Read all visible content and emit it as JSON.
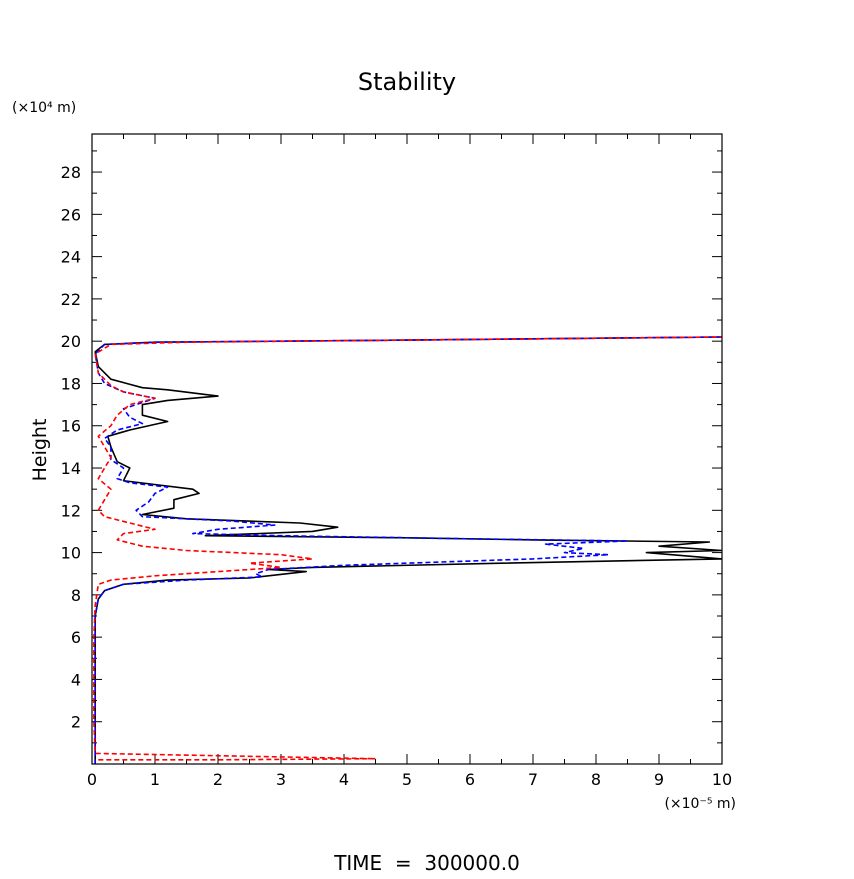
{
  "chart_data": {
    "type": "line",
    "title": "Stability",
    "xlabel": "",
    "ylabel": "Height",
    "x_unit_label": "(×10⁻⁵ m)",
    "y_unit_label": "(×10⁴ m)",
    "footer": "TIME  =  300000.0",
    "xlim": [
      0,
      10
    ],
    "ylim": [
      0,
      29.8
    ],
    "x_ticks": [
      0,
      1,
      2,
      3,
      4,
      5,
      6,
      7,
      8,
      9,
      10
    ],
    "y_ticks": [
      2,
      4,
      6,
      8,
      10,
      12,
      14,
      16,
      18,
      20,
      22,
      24,
      26,
      28
    ],
    "grid": false,
    "legend": "none",
    "series": [
      {
        "color": "#000000",
        "style": "solid",
        "points": [
          [
            0.05,
            0
          ],
          [
            0.05,
            4
          ],
          [
            0.05,
            7
          ],
          [
            0.1,
            7.8
          ],
          [
            0.2,
            8.2
          ],
          [
            0.5,
            8.5
          ],
          [
            1.2,
            8.7
          ],
          [
            2.5,
            8.8
          ],
          [
            3.4,
            9.1
          ],
          [
            2.8,
            9.2
          ],
          [
            3.5,
            9.3
          ],
          [
            6.5,
            9.5
          ],
          [
            10.0,
            9.7
          ],
          [
            8.8,
            10.0
          ],
          [
            10.0,
            10.1
          ],
          [
            9.0,
            10.3
          ],
          [
            9.8,
            10.5
          ],
          [
            7.0,
            10.6
          ],
          [
            5.0,
            10.7
          ],
          [
            1.8,
            10.8
          ],
          [
            3.5,
            11.0
          ],
          [
            3.9,
            11.2
          ],
          [
            3.3,
            11.4
          ],
          [
            1.5,
            11.6
          ],
          [
            0.8,
            11.8
          ],
          [
            1.3,
            12.1
          ],
          [
            1.3,
            12.5
          ],
          [
            1.7,
            12.8
          ],
          [
            1.6,
            13.0
          ],
          [
            0.5,
            13.4
          ],
          [
            0.6,
            14.0
          ],
          [
            0.4,
            14.3
          ],
          [
            0.3,
            15.0
          ],
          [
            0.25,
            15.5
          ],
          [
            0.6,
            15.8
          ],
          [
            1.2,
            16.2
          ],
          [
            0.8,
            16.5
          ],
          [
            0.8,
            17.0
          ],
          [
            1.2,
            17.2
          ],
          [
            2.0,
            17.4
          ],
          [
            1.2,
            17.7
          ],
          [
            0.8,
            17.8
          ],
          [
            0.3,
            18.2
          ],
          [
            0.1,
            18.8
          ],
          [
            0.05,
            19.5
          ],
          [
            0.2,
            19.85
          ],
          [
            1.0,
            19.95
          ],
          [
            5.0,
            20.05
          ],
          [
            10.0,
            20.2
          ]
        ]
      },
      {
        "color": "#0000ff",
        "style": "dashed",
        "points": [
          [
            0.05,
            0
          ],
          [
            0.05,
            4
          ],
          [
            0.05,
            7
          ],
          [
            0.1,
            7.8
          ],
          [
            0.2,
            8.2
          ],
          [
            0.5,
            8.5
          ],
          [
            1.5,
            8.7
          ],
          [
            2.7,
            8.85
          ],
          [
            2.6,
            9.0
          ],
          [
            2.8,
            9.2
          ],
          [
            4.0,
            9.4
          ],
          [
            7.0,
            9.7
          ],
          [
            8.2,
            9.9
          ],
          [
            7.5,
            10.0
          ],
          [
            7.8,
            10.2
          ],
          [
            7.2,
            10.4
          ],
          [
            8.5,
            10.55
          ],
          [
            6.0,
            10.65
          ],
          [
            3.0,
            10.8
          ],
          [
            1.6,
            10.9
          ],
          [
            2.0,
            11.1
          ],
          [
            2.9,
            11.3
          ],
          [
            2.2,
            11.5
          ],
          [
            0.8,
            11.7
          ],
          [
            0.7,
            12.0
          ],
          [
            0.9,
            12.4
          ],
          [
            1.0,
            12.8
          ],
          [
            1.2,
            13.1
          ],
          [
            0.6,
            13.3
          ],
          [
            0.4,
            13.5
          ],
          [
            0.5,
            14.0
          ],
          [
            0.3,
            14.4
          ],
          [
            0.3,
            15.0
          ],
          [
            0.2,
            15.4
          ],
          [
            0.4,
            15.8
          ],
          [
            0.8,
            16.1
          ],
          [
            0.6,
            16.4
          ],
          [
            0.5,
            16.8
          ],
          [
            0.8,
            17.1
          ],
          [
            1.0,
            17.3
          ],
          [
            0.5,
            17.6
          ],
          [
            0.2,
            18.0
          ],
          [
            0.1,
            18.5
          ],
          [
            0.05,
            19.4
          ],
          [
            0.2,
            19.85
          ],
          [
            1.0,
            19.95
          ],
          [
            5.0,
            20.05
          ],
          [
            10.0,
            20.2
          ]
        ]
      },
      {
        "color": "#ff0000",
        "style": "dashed",
        "points": [
          [
            0.1,
            0.2
          ],
          [
            0.8,
            0.2
          ],
          [
            2.0,
            0.2
          ],
          [
            4.5,
            0.25
          ],
          [
            0.05,
            0.5
          ],
          [
            0.03,
            2
          ],
          [
            0.03,
            4
          ],
          [
            0.03,
            6
          ],
          [
            0.05,
            7.5
          ],
          [
            0.1,
            8.5
          ],
          [
            0.3,
            8.7
          ],
          [
            1.0,
            8.9
          ],
          [
            2.0,
            9.1
          ],
          [
            3.0,
            9.3
          ],
          [
            2.5,
            9.5
          ],
          [
            3.5,
            9.7
          ],
          [
            3.0,
            9.9
          ],
          [
            1.5,
            10.1
          ],
          [
            0.8,
            10.3
          ],
          [
            0.4,
            10.6
          ],
          [
            0.5,
            10.9
          ],
          [
            1.0,
            11.1
          ],
          [
            0.6,
            11.4
          ],
          [
            0.2,
            11.7
          ],
          [
            0.1,
            12.0
          ],
          [
            0.2,
            12.5
          ],
          [
            0.3,
            13.0
          ],
          [
            0.1,
            13.5
          ],
          [
            0.2,
            14.0
          ],
          [
            0.3,
            14.5
          ],
          [
            0.2,
            15.0
          ],
          [
            0.1,
            15.5
          ],
          [
            0.3,
            16.0
          ],
          [
            0.4,
            16.5
          ],
          [
            0.6,
            17.0
          ],
          [
            1.0,
            17.3
          ],
          [
            0.5,
            17.6
          ],
          [
            0.3,
            17.9
          ],
          [
            0.1,
            18.5
          ],
          [
            0.05,
            19.4
          ],
          [
            0.3,
            19.85
          ],
          [
            1.5,
            19.95
          ],
          [
            5.0,
            20.05
          ],
          [
            10.0,
            20.2
          ]
        ]
      }
    ]
  }
}
